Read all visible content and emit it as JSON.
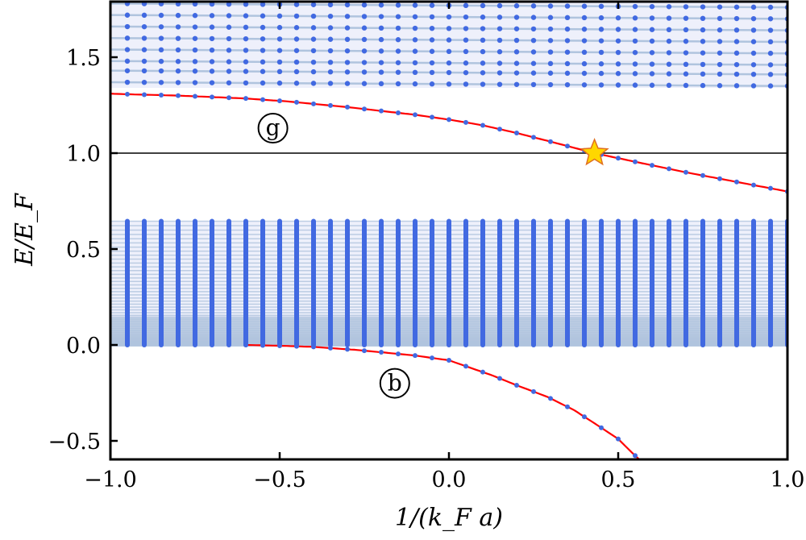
{
  "chart_data": {
    "type": "line",
    "xlabel": "1/(k_F a)",
    "ylabel": "E/E_F",
    "xlim": [
      -1.0,
      1.0
    ],
    "ylim": [
      -0.6,
      1.79
    ],
    "xticks": [
      "−1.0",
      "−0.5",
      "0.0",
      "0.5",
      "1.0"
    ],
    "xtick_values": [
      -1.0,
      -0.5,
      0.0,
      0.5,
      1.0
    ],
    "yticks": [
      "−0.5",
      "0.0",
      "0.5",
      "1.0",
      "1.5"
    ],
    "ytick_values": [
      -0.5,
      0.0,
      0.5,
      1.0,
      1.5
    ],
    "grid": false,
    "reference_line_y": 1.0,
    "colors": {
      "curve": "#ff0000",
      "dots": "#4169e1",
      "levels": "#b0c4de",
      "band": "#eef0fb",
      "star": "#ffd700",
      "star_edge": "#e07020"
    },
    "sample_step": 0.05,
    "series": [
      {
        "label": "g",
        "label_at": [
          -0.52,
          1.13
        ],
        "x": [
          -1.0,
          -0.95,
          -0.8,
          -0.6,
          -0.48,
          -0.3,
          -0.1,
          0.0,
          0.1,
          0.2,
          0.3,
          0.43,
          0.55,
          0.7,
          0.85,
          1.0
        ],
        "y": [
          1.31,
          1.307,
          1.3,
          1.285,
          1.27,
          1.24,
          1.2,
          1.175,
          1.145,
          1.105,
          1.06,
          1.0,
          0.955,
          0.9,
          0.85,
          0.8
        ]
      },
      {
        "label": "b",
        "label_at": [
          -0.16,
          -0.2
        ],
        "x": [
          -0.6,
          -0.5,
          -0.4,
          -0.28,
          -0.2,
          -0.1,
          0.0,
          0.13,
          0.2,
          0.29,
          0.37,
          0.44,
          0.5,
          0.54,
          0.57
        ],
        "y": [
          0.0,
          -0.004,
          -0.01,
          -0.025,
          -0.038,
          -0.055,
          -0.08,
          -0.16,
          -0.21,
          -0.27,
          -0.34,
          -0.42,
          -0.49,
          -0.56,
          -0.61
        ]
      }
    ],
    "upper_continuum": {
      "E_bottom": 1.34,
      "levels_at_left": [
        1.78,
        1.72,
        1.66,
        1.6,
        1.54,
        1.48,
        1.43,
        1.37
      ],
      "levels_at_right": [
        1.76,
        1.7,
        1.64,
        1.58,
        1.52,
        1.46,
        1.41,
        1.35
      ]
    },
    "lower_continuum": {
      "E_min": 0.0,
      "E_max": 0.645
    },
    "marker": {
      "type": "star",
      "x": 0.43,
      "y": 1.0
    }
  }
}
